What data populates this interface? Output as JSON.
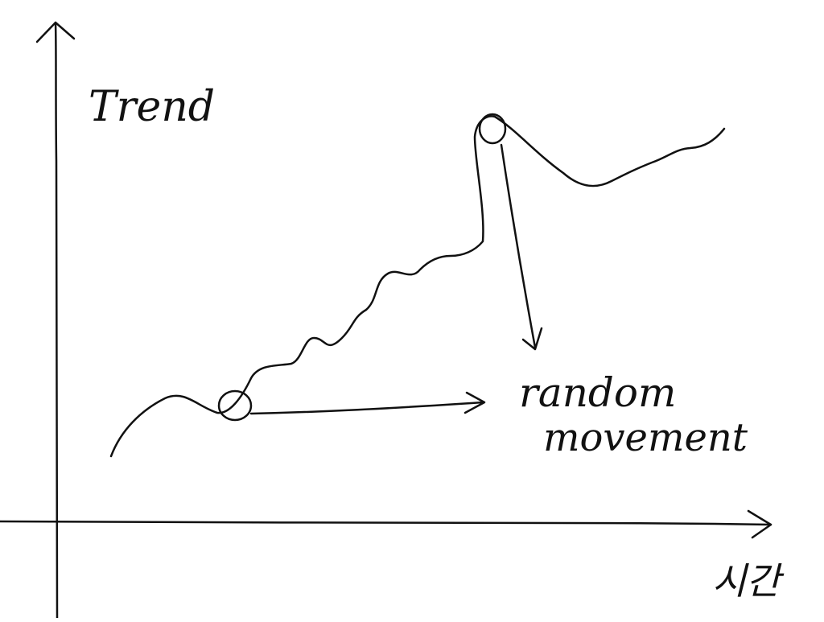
{
  "diagram": {
    "y_axis_label": "Trend",
    "x_axis_label": "시간",
    "annotation_label_line1": "random",
    "annotation_label_line2": "movement",
    "colors": {
      "ink": "#111111",
      "background": "#ffffff"
    }
  }
}
